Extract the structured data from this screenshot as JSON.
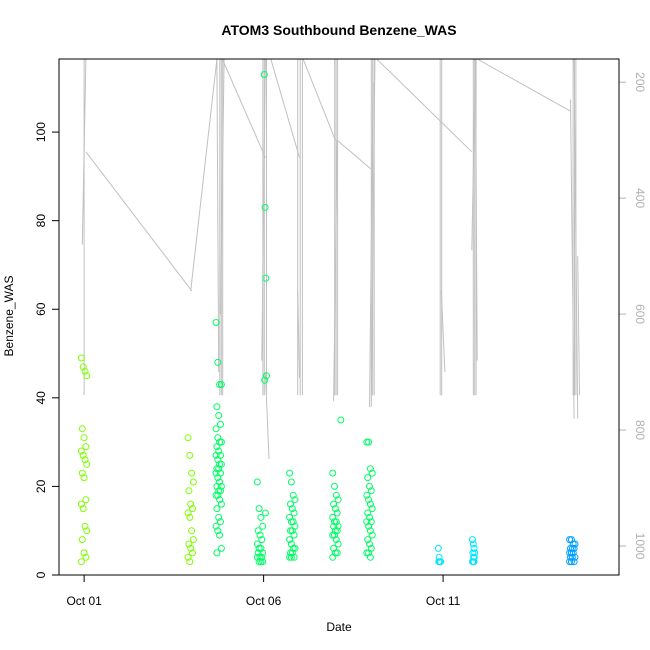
{
  "chart_data": {
    "type": "scatter",
    "title": "ATOM3 Southbound Benzene_WAS",
    "xlabel": "Date",
    "ylabel": "Benzene_WAS",
    "x_ticks": [
      "Oct 01",
      "Oct 06",
      "Oct 11"
    ],
    "y_ticks": [
      0,
      20,
      40,
      60,
      80,
      100
    ],
    "y2_ticks": [
      200,
      400,
      600,
      800,
      1000
    ],
    "xlim_days": [
      -0.7,
      14.9
    ],
    "ylim": [
      0,
      116.5
    ],
    "y2lim": [
      1050,
      160
    ],
    "y2_reversed": true,
    "grid": false,
    "legend": "none",
    "colors": {
      "points_early": "#7fff00",
      "points_mid": "#00ff66",
      "points_late": "#00e5ff",
      "points_last": "#00a0ff",
      "secondary_line": "#c0c0c0",
      "right_axis": "#b0b0b0"
    },
    "points": [
      {
        "day": 0.0,
        "values": [
          49,
          47,
          46,
          45,
          33,
          31,
          29,
          28,
          27,
          26,
          25,
          23,
          22,
          17,
          16,
          15,
          11,
          10,
          8,
          5,
          4,
          3
        ]
      },
      {
        "day": 2.97,
        "values": [
          31,
          27,
          23,
          21,
          19,
          16,
          15,
          14,
          13,
          10,
          8,
          7,
          6,
          5,
          4,
          3
        ]
      },
      {
        "day": 3.75,
        "values": [
          57,
          48,
          43,
          43,
          38,
          36,
          34,
          33,
          31,
          30,
          30,
          29,
          28,
          27,
          27,
          26,
          25,
          25,
          24,
          24,
          23,
          23,
          22,
          21,
          20,
          20,
          19,
          19,
          18,
          18,
          17,
          16,
          15,
          13,
          12,
          11,
          10,
          9,
          6,
          5
        ]
      },
      {
        "day": 4.9,
        "values": [
          21,
          15,
          13,
          11,
          10,
          9,
          8,
          7,
          6,
          6,
          5,
          5,
          4,
          4,
          4,
          3,
          3,
          3
        ]
      },
      {
        "day": 5.05,
        "values": [
          113,
          83,
          67,
          45,
          44,
          14
        ]
      },
      {
        "day": 5.8,
        "values": [
          23,
          21,
          18,
          17,
          16,
          15,
          14,
          13,
          12,
          12,
          11,
          10,
          10,
          9,
          8,
          7,
          6,
          6,
          5,
          5,
          4,
          4,
          4
        ]
      },
      {
        "day": 7.0,
        "values": [
          23,
          20,
          18,
          17,
          16,
          15,
          14,
          13,
          12,
          12,
          11,
          11,
          10,
          10,
          9,
          9,
          8,
          7,
          6,
          5,
          5,
          4
        ]
      },
      {
        "day": 7.18,
        "values": [
          35
        ]
      },
      {
        "day": 7.95,
        "values": [
          30,
          30,
          24,
          23,
          22,
          20,
          19,
          18,
          17,
          16,
          15,
          14,
          13,
          12,
          12,
          11,
          10,
          9,
          8,
          7,
          6,
          5,
          5,
          4
        ]
      },
      {
        "day": 9.9,
        "values": [
          6,
          4,
          3,
          3,
          3
        ]
      },
      {
        "day": 10.85,
        "values": [
          8,
          7,
          6,
          5,
          5,
          4,
          4,
          3,
          3,
          3
        ]
      },
      {
        "day": 13.6,
        "values": [
          8,
          8,
          7,
          7,
          6,
          6,
          6,
          5,
          5,
          5,
          4,
          4,
          4,
          3,
          3,
          3
        ]
      }
    ]
  }
}
